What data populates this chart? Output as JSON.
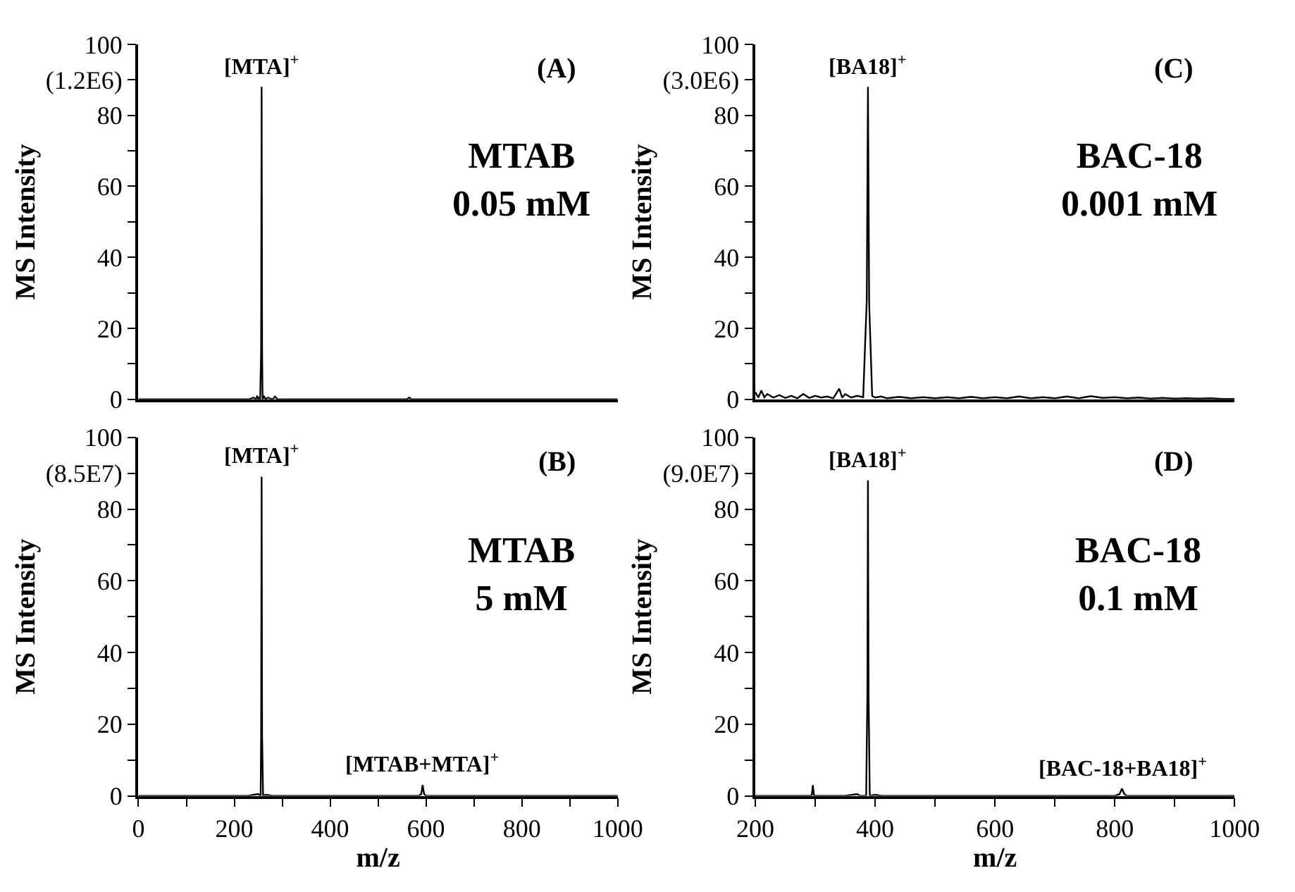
{
  "chart_data": [
    {
      "type": "line",
      "xlim": [
        0,
        1000
      ],
      "xticks": [
        0,
        200,
        400,
        600,
        800,
        1000
      ],
      "ylim": [
        0,
        100
      ],
      "ylabel": "MS Intensity",
      "tick_labels": "y",
      "yticks": [
        0,
        {
          "value": 10,
          "label": null
        },
        20,
        {
          "value": 30,
          "label": null
        },
        40,
        {
          "value": 50,
          "label": null
        },
        60,
        {
          "value": 70,
          "label": null
        },
        80,
        {
          "value": 90,
          "label": "(1.2E6)"
        },
        100
      ],
      "series": [
        {
          "color": "#000000",
          "x": [
            0,
            100,
            200,
            230,
            240,
            245,
            248,
            250,
            252,
            254,
            256,
            257,
            258,
            259,
            262,
            266,
            270,
            280,
            285,
            290,
            300,
            330,
            560,
            565,
            570,
            600,
            1000
          ],
          "values": [
            0,
            0,
            0,
            0,
            0.5,
            0,
            1,
            0,
            0.5,
            0,
            14,
            88,
            14,
            0,
            0.8,
            0,
            0.5,
            0,
            0.8,
            0,
            0,
            0,
            0,
            0.5,
            0,
            0,
            0
          ]
        }
      ],
      "annotations": [
        {
          "text": "[MTA]$^{+}$",
          "x": 257,
          "y": 88
        },
        "(A)",
        "MTAB\n0.05 mM"
      ]
    },
    {
      "type": "line",
      "xlim": [
        200,
        1000
      ],
      "xticks": [
        200,
        400,
        600,
        800,
        1000
      ],
      "ylim": [
        0,
        100
      ],
      "ylabel": "MS Intensity",
      "tick_labels": "y",
      "yticks": [
        0,
        {
          "value": 10,
          "label": null
        },
        20,
        {
          "value": 30,
          "label": null
        },
        40,
        {
          "value": 50,
          "label": null
        },
        60,
        {
          "value": 70,
          "label": null
        },
        80,
        {
          "value": 90,
          "label": "(3.0E6)"
        },
        100
      ],
      "series": [
        {
          "color": "#000000",
          "x": [
            200,
            205,
            210,
            215,
            220,
            230,
            240,
            250,
            260,
            270,
            280,
            290,
            300,
            310,
            320,
            330,
            340,
            345,
            350,
            360,
            370,
            380,
            386,
            388,
            390,
            395,
            400,
            410,
            420,
            440,
            460,
            480,
            500,
            520,
            540,
            560,
            580,
            600,
            620,
            640,
            660,
            680,
            700,
            720,
            740,
            760,
            780,
            800,
            820,
            840,
            860,
            880,
            900,
            920,
            940,
            960,
            980,
            1000
          ],
          "values": [
            2,
            0.5,
            2.5,
            0.6,
            1.5,
            0.5,
            1.2,
            0.4,
            1,
            0.3,
            1.5,
            0.4,
            1,
            0.5,
            0.8,
            0.3,
            3,
            0.5,
            1.5,
            0.5,
            1,
            0.6,
            28,
            88,
            27,
            1,
            0.5,
            0.8,
            0.3,
            0.7,
            0.3,
            0.6,
            0.3,
            0.6,
            0.3,
            0.7,
            0.3,
            0.6,
            0.3,
            0.8,
            0.3,
            0.6,
            0.3,
            0.8,
            0.3,
            0.9,
            0.4,
            0.6,
            0.3,
            0.5,
            0.2,
            0.4,
            0.2,
            0.3,
            0.2,
            0.3,
            0.1,
            0.1
          ]
        }
      ],
      "annotations": [
        {
          "text": "[BA18]$^{+}$",
          "x": 388,
          "y": 88
        },
        "(C)",
        "BAC-18\n0.001 mM"
      ]
    },
    {
      "type": "line",
      "xlim": [
        0,
        1000
      ],
      "xlabel": "m/z",
      "ylim": [
        0,
        100
      ],
      "ylabel": "MS Intensity",
      "xticks": [
        0,
        {
          "value": 100,
          "label": null
        },
        200,
        {
          "value": 300,
          "label": null
        },
        400,
        {
          "value": 500,
          "label": null
        },
        600,
        {
          "value": 700,
          "label": null
        },
        800,
        {
          "value": 900,
          "label": null
        },
        1000
      ],
      "yticks": [
        0,
        {
          "value": 10,
          "label": null
        },
        20,
        {
          "value": 30,
          "label": null
        },
        40,
        {
          "value": 50,
          "label": null
        },
        60,
        {
          "value": 70,
          "label": null
        },
        80,
        {
          "value": 90,
          "label": "(8.5E7)"
        },
        100
      ],
      "series": [
        {
          "color": "#000000",
          "x": [
            0,
            200,
            230,
            240,
            250,
            255,
            256,
            257,
            258,
            260,
            265,
            280,
            300,
            400,
            585,
            590,
            593,
            596,
            600,
            1000
          ],
          "values": [
            0,
            0,
            0,
            0.3,
            0.5,
            0,
            17,
            89,
            17,
            0,
            0.3,
            0,
            0,
            0,
            0,
            0.5,
            3,
            0.5,
            0,
            0
          ]
        }
      ],
      "annotations": [
        {
          "text": "[MTA]$^{+}$",
          "x": 257,
          "y": 89
        },
        "(B)",
        "MTAB\n5 mM",
        {
          "text": "[MTAB+MTA]$^{+}$",
          "x": 593,
          "y": 3
        }
      ]
    },
    {
      "type": "line",
      "xlim": [
        200,
        1000
      ],
      "xlabel": "m/z",
      "ylim": [
        0,
        100
      ],
      "ylabel": "MS Intensity",
      "xticks": [
        200,
        {
          "value": 300,
          "label": null
        },
        400,
        {
          "value": 500,
          "label": null
        },
        600,
        {
          "value": 700,
          "label": null
        },
        800,
        {
          "value": 900,
          "label": null
        },
        1000
      ],
      "yticks": [
        0,
        {
          "value": 10,
          "label": null
        },
        20,
        {
          "value": 30,
          "label": null
        },
        40,
        {
          "value": 50,
          "label": null
        },
        60,
        {
          "value": 70,
          "label": null
        },
        80,
        {
          "value": 90,
          "label": "(9.0E7)"
        },
        100
      ],
      "series": [
        {
          "color": "#000000",
          "x": [
            200,
            280,
            294,
            296,
            298,
            350,
            370,
            375,
            385,
            387,
            388,
            389,
            391,
            400,
            410,
            800,
            808,
            812,
            816,
            820,
            1000
          ],
          "values": [
            0,
            0,
            0,
            3,
            0,
            0,
            0.5,
            0,
            0,
            28,
            88,
            28,
            0,
            0.3,
            0,
            0,
            0.5,
            2,
            0.5,
            0,
            0
          ]
        }
      ],
      "annotations": [
        {
          "text": "[BA18]$^{+}$",
          "x": 388,
          "y": 88
        },
        "(D)",
        "BAC-18\n0.1 mM",
        {
          "text": "[BAC-18+BA18]$^{+}$",
          "x": 812,
          "y": 2
        }
      ]
    }
  ]
}
